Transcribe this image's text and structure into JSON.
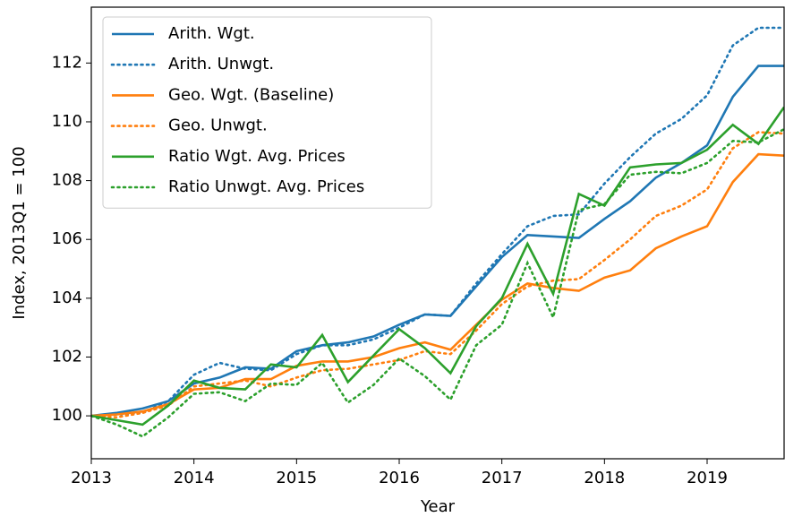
{
  "chart_data": {
    "type": "line",
    "x_label": "Year",
    "y_label": "Index, 2013Q1 = 100",
    "x": [
      2013,
      2013.25,
      2013.5,
      2013.75,
      2014,
      2014.25,
      2014.5,
      2014.75,
      2015,
      2015.25,
      2015.5,
      2015.75,
      2016,
      2016.25,
      2016.5,
      2016.75,
      2017,
      2017.25,
      2017.5,
      2017.75,
      2018,
      2018.25,
      2018.5,
      2018.75,
      2019,
      2019.25,
      2019.5,
      2019.75
    ],
    "xlim": [
      2013,
      2019.75
    ],
    "xticks": [
      2013,
      2014,
      2015,
      2016,
      2017,
      2018,
      2019
    ],
    "ylim": [
      98.54,
      113.9
    ],
    "yticks": [
      100,
      102,
      104,
      106,
      108,
      110,
      112
    ],
    "legend": "upper left",
    "grid": false,
    "series": [
      {
        "name": "Arith. Wgt.",
        "color": "#1f77b4",
        "style": "solid",
        "values": [
          100,
          100.1,
          100.25,
          100.5,
          101.1,
          101.3,
          101.65,
          101.6,
          102.2,
          102.4,
          102.5,
          102.7,
          103.1,
          103.45,
          103.4,
          104.4,
          105.4,
          106.15,
          106.1,
          106.05,
          106.7,
          107.3,
          108.1,
          108.6,
          109.2,
          110.85,
          111.9,
          111.9
        ]
      },
      {
        "name": "Arith. Unwgt.",
        "color": "#1f77b4",
        "style": "dotted",
        "values": [
          100,
          100.05,
          100.1,
          100.5,
          101.4,
          101.8,
          101.6,
          101.55,
          102.1,
          102.4,
          102.4,
          102.6,
          103.0,
          103.45,
          103.4,
          104.5,
          105.5,
          106.45,
          106.8,
          106.85,
          107.9,
          108.8,
          109.6,
          110.1,
          110.9,
          112.6,
          113.2,
          113.2
        ]
      },
      {
        "name": "Geo. Wgt. (Baseline)",
        "color": "#ff7f0e",
        "style": "solid",
        "values": [
          100,
          100.05,
          100.15,
          100.4,
          100.9,
          100.95,
          101.25,
          101.25,
          101.7,
          101.85,
          101.85,
          102.0,
          102.3,
          102.5,
          102.25,
          103.1,
          103.95,
          104.5,
          104.35,
          104.25,
          104.7,
          104.95,
          105.7,
          106.1,
          106.45,
          107.95,
          108.9,
          108.85
        ]
      },
      {
        "name": "Geo. Unwgt.",
        "color": "#ff7f0e",
        "style": "dotted",
        "values": [
          100,
          99.95,
          100.1,
          100.35,
          101.0,
          101.1,
          101.2,
          101.0,
          101.3,
          101.55,
          101.6,
          101.75,
          101.9,
          102.2,
          102.1,
          102.9,
          103.8,
          104.4,
          104.6,
          104.65,
          105.3,
          106.0,
          106.8,
          107.15,
          107.7,
          109.1,
          109.65,
          109.6
        ]
      },
      {
        "name": "Ratio Wgt. Avg. Prices",
        "color": "#2ca02c",
        "style": "solid",
        "values": [
          100,
          99.85,
          99.7,
          100.35,
          101.2,
          100.95,
          100.9,
          101.75,
          101.65,
          102.75,
          101.15,
          102.05,
          102.95,
          102.3,
          101.45,
          103.05,
          104.0,
          105.85,
          104.15,
          107.55,
          107.15,
          108.45,
          108.55,
          108.6,
          109.05,
          109.9,
          109.25,
          110.5
        ]
      },
      {
        "name": "Ratio Unwgt. Avg. Prices",
        "color": "#2ca02c",
        "style": "dotted",
        "values": [
          100,
          99.7,
          99.3,
          99.95,
          100.75,
          100.8,
          100.5,
          101.1,
          101.05,
          101.8,
          100.45,
          101.05,
          101.95,
          101.35,
          100.55,
          102.4,
          103.1,
          105.2,
          103.35,
          107.0,
          107.2,
          108.2,
          108.3,
          108.25,
          108.6,
          109.35,
          109.3,
          109.75
        ]
      }
    ]
  }
}
